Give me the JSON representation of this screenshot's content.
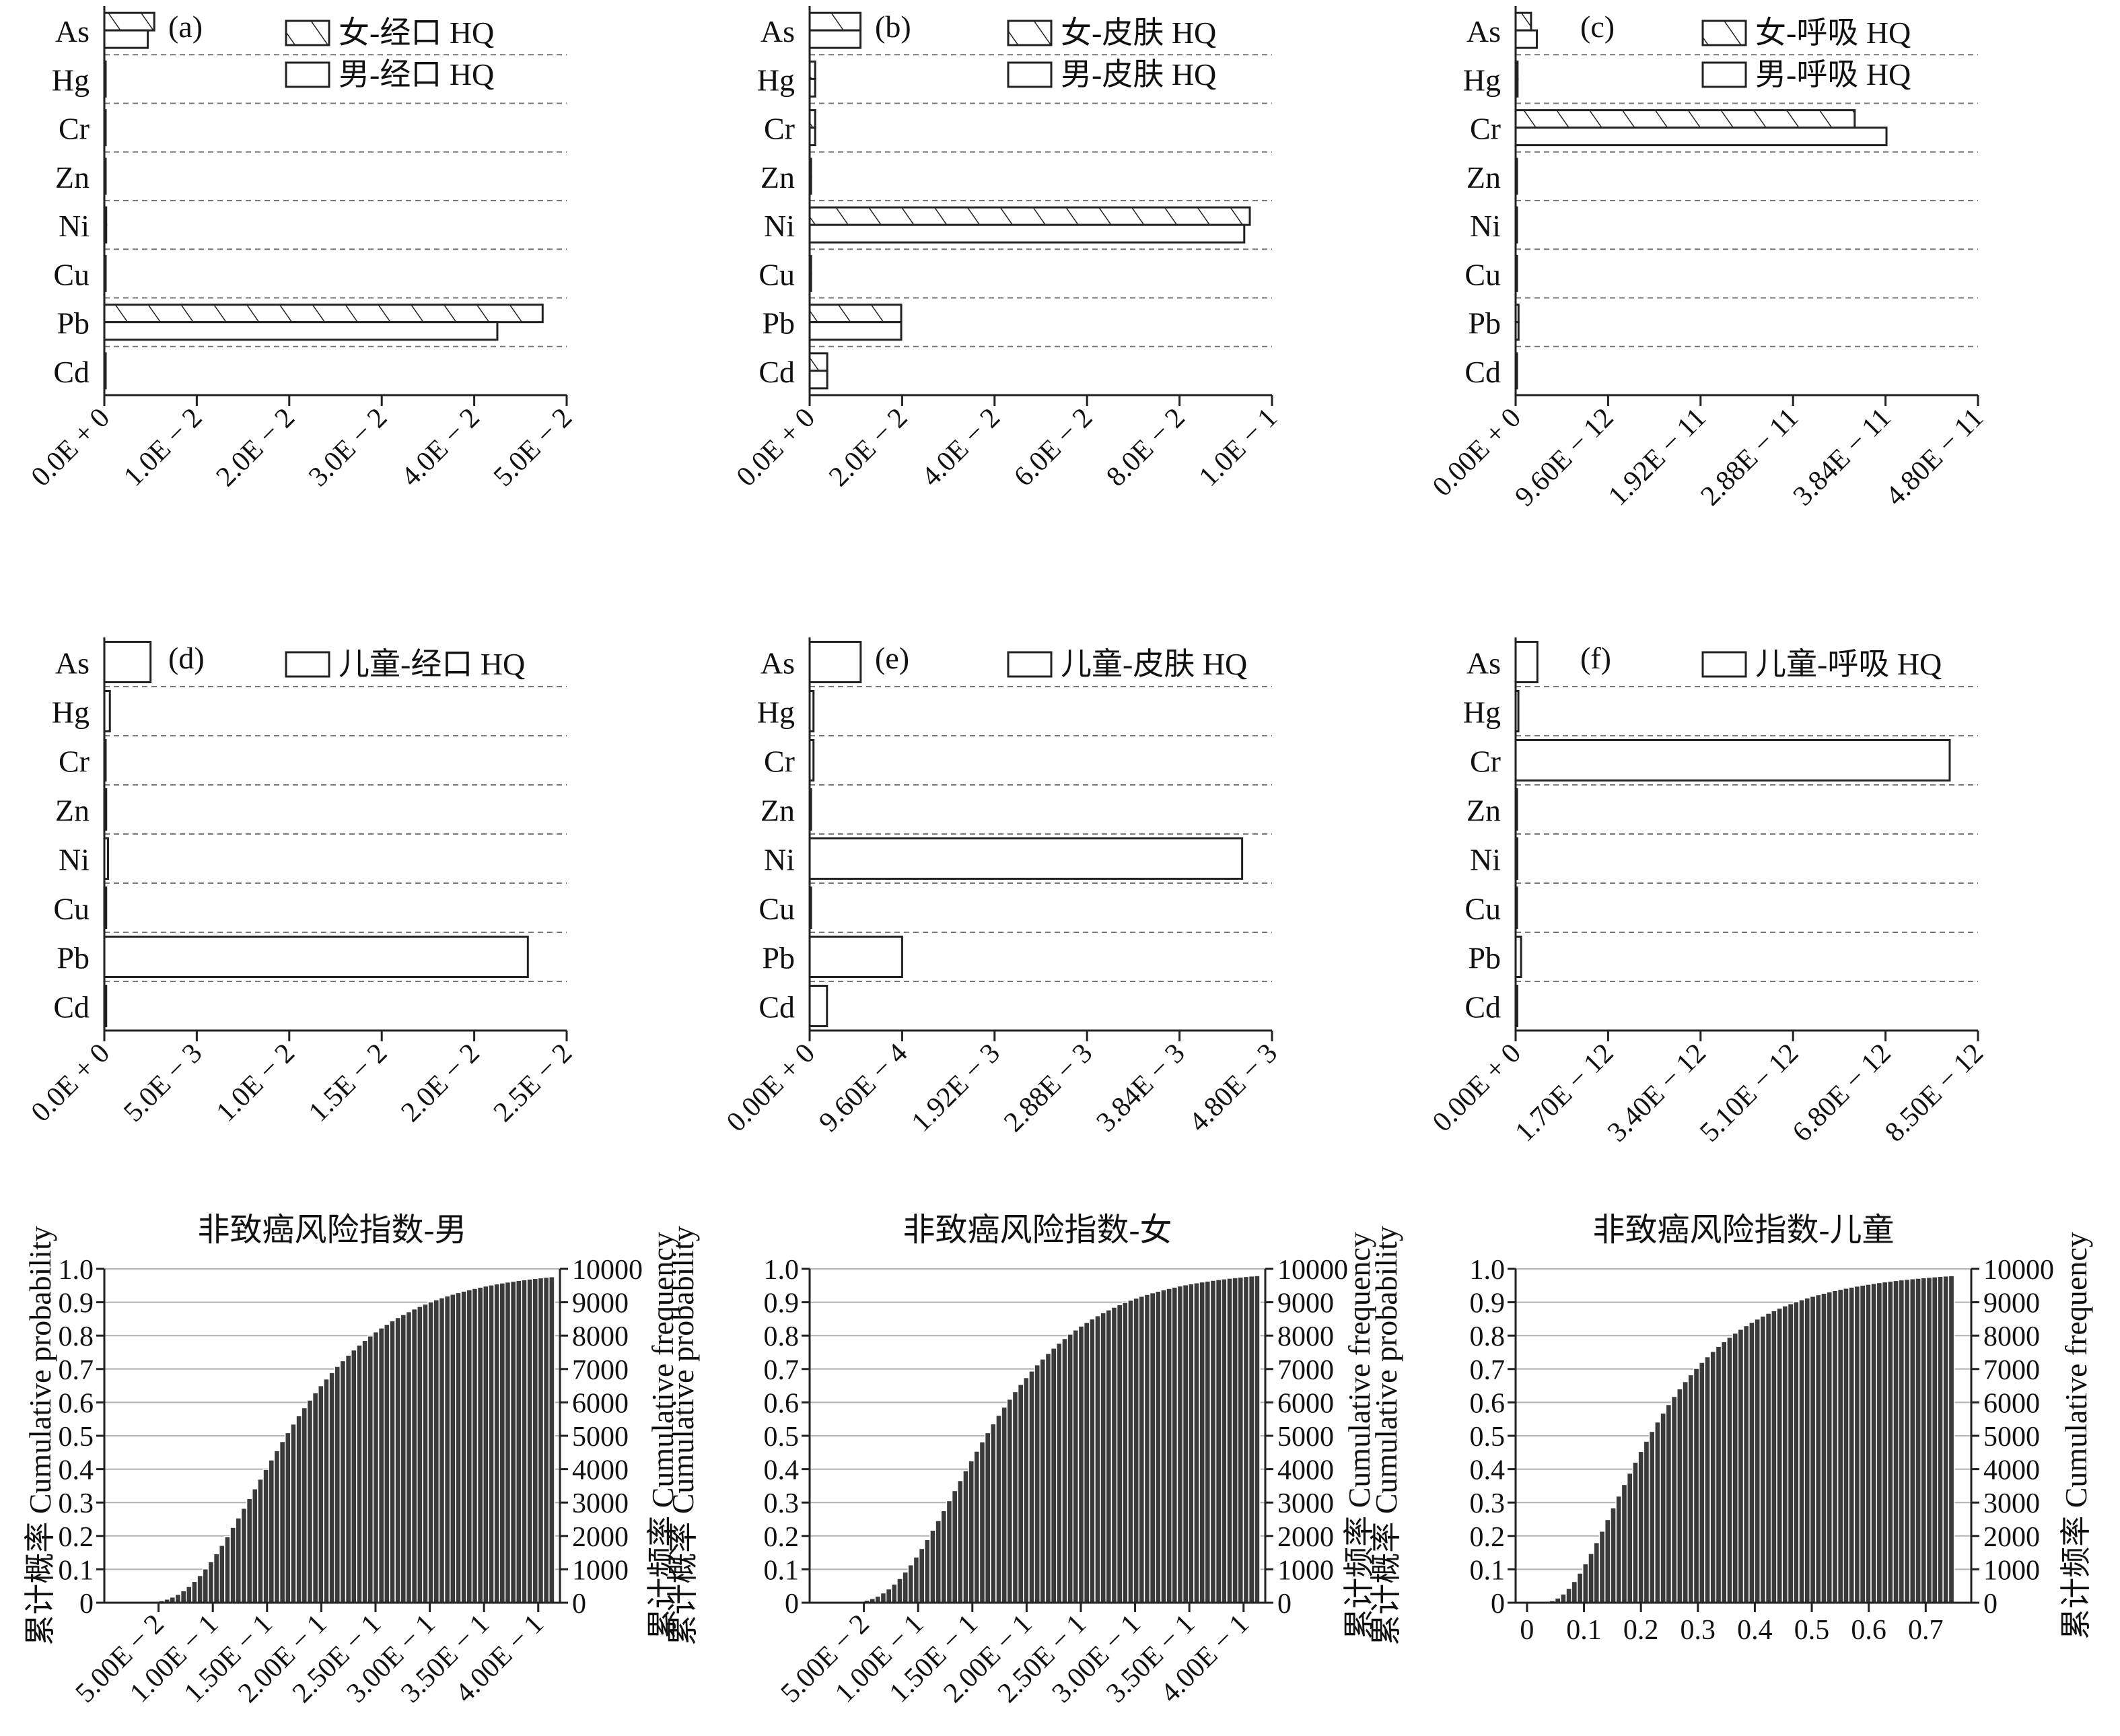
{
  "chart_data": [
    {
      "id": "a",
      "type": "bar",
      "orientation": "horizontal",
      "panel_label": "(a)",
      "categories": [
        "As",
        "Hg",
        "Cr",
        "Zn",
        "Ni",
        "Cu",
        "Pb",
        "Cd"
      ],
      "xlim": [
        0,
        0.05
      ],
      "x_tick_labels": [
        "0.0E + 0",
        "1.0E − 2",
        "2.0E − 2",
        "3.0E − 2",
        "4.0E − 2",
        "5.0E − 2"
      ],
      "series": [
        {
          "name": "女-经口 HQ",
          "pattern": "hatch",
          "values": [
            0.0054,
            0.0001,
            0.0,
            0.0001,
            0.0002,
            0.0001,
            0.0474,
            0.0001
          ]
        },
        {
          "name": "男-经口 HQ",
          "pattern": "open",
          "values": [
            0.0047,
            0.0001,
            0.0,
            0.0001,
            0.0002,
            0.0001,
            0.0425,
            0.0001
          ]
        }
      ]
    },
    {
      "id": "b",
      "type": "bar",
      "orientation": "horizontal",
      "panel_label": "(b)",
      "categories": [
        "As",
        "Hg",
        "Cr",
        "Zn",
        "Ni",
        "Cu",
        "Pb",
        "Cd"
      ],
      "xlim": [
        0,
        0.1
      ],
      "x_tick_labels": [
        "0.0E + 0",
        "2.0E − 2",
        "4.0E − 2",
        "6.0E − 2",
        "8.0E − 2",
        "1.0E − 1"
      ],
      "series": [
        {
          "name": "女-皮肤 HQ",
          "pattern": "hatch",
          "values": [
            0.011,
            0.0012,
            0.0012,
            0.0003,
            0.0952,
            0.0003,
            0.0198,
            0.0038
          ]
        },
        {
          "name": "男-皮肤 HQ",
          "pattern": "open",
          "values": [
            0.011,
            0.0012,
            0.0012,
            0.0003,
            0.094,
            0.0003,
            0.0198,
            0.0038
          ]
        }
      ]
    },
    {
      "id": "c",
      "type": "bar",
      "orientation": "horizontal",
      "panel_label": "(c)",
      "categories": [
        "As",
        "Hg",
        "Cr",
        "Zn",
        "Ni",
        "Cu",
        "Pb",
        "Cd"
      ],
      "xlim": [
        0,
        4.8e-11
      ],
      "x_tick_labels": [
        "0.00E + 0",
        "9.60E − 12",
        "1.92E − 11",
        "2.88E − 11",
        "3.84E − 11",
        "4.80E − 11"
      ],
      "series": [
        {
          "name": "女-呼吸 HQ",
          "pattern": "hatch",
          "values": [
            1.6e-12,
            2e-13,
            3.52e-11,
            1e-13,
            1e-13,
            5e-14,
            3e-13,
            1e-13
          ]
        },
        {
          "name": "男-呼吸 HQ",
          "pattern": "open",
          "values": [
            2.2e-12,
            2e-13,
            3.85e-11,
            1e-13,
            1e-13,
            5e-14,
            3e-13,
            1e-13
          ]
        }
      ]
    },
    {
      "id": "d",
      "type": "bar",
      "orientation": "horizontal",
      "panel_label": "(d)",
      "categories": [
        "As",
        "Hg",
        "Cr",
        "Zn",
        "Ni",
        "Cu",
        "Pb",
        "Cd"
      ],
      "xlim": [
        0,
        0.025
      ],
      "x_tick_labels": [
        "0.0E + 0",
        "5.0E − 3",
        "1.0E − 2",
        "1.5E − 2",
        "2.0E − 2",
        "2.5E − 2"
      ],
      "series": [
        {
          "name": "儿童-经口 HQ",
          "pattern": "open",
          "values": [
            0.0025,
            0.0003,
            0.0,
            0.0001,
            0.0002,
            0.0001,
            0.0229,
            0.0001
          ]
        }
      ]
    },
    {
      "id": "e",
      "type": "bar",
      "orientation": "horizontal",
      "panel_label": "(e)",
      "categories": [
        "As",
        "Hg",
        "Cr",
        "Zn",
        "Ni",
        "Cu",
        "Pb",
        "Cd"
      ],
      "xlim": [
        0,
        0.0048
      ],
      "x_tick_labels": [
        "0.00E + 0",
        "9.60E − 4",
        "1.92E − 3",
        "2.88E − 3",
        "3.84E − 3",
        "4.80E − 3"
      ],
      "series": [
        {
          "name": "儿童-皮肤 HQ",
          "pattern": "open",
          "values": [
            0.00053,
            4e-05,
            4e-05,
            1e-05,
            0.00449,
            1e-05,
            0.00096,
            0.00018
          ]
        }
      ]
    },
    {
      "id": "f",
      "type": "bar",
      "orientation": "horizontal",
      "panel_label": "(f)",
      "categories": [
        "As",
        "Hg",
        "Cr",
        "Zn",
        "Ni",
        "Cu",
        "Pb",
        "Cd"
      ],
      "xlim": [
        0,
        8.5e-12
      ],
      "x_tick_labels": [
        "0.00E + 0",
        "1.70E − 12",
        "3.40E − 12",
        "5.10E − 12",
        "6.80E − 12",
        "8.50E − 12"
      ],
      "series": [
        {
          "name": "儿童-呼吸 HQ",
          "pattern": "open",
          "values": [
            4e-13,
            5e-14,
            7.98e-12,
            2e-14,
            3e-14,
            2e-14,
            1e-13,
            3e-14
          ]
        }
      ]
    },
    {
      "id": "g",
      "type": "bar",
      "subtype": "cumulative",
      "title": "非致癌风险指数-男",
      "ylabel_left": "累计概率 Cumulative probability",
      "ylabel_right": "累计频率 Cumulative frequency",
      "xlim": [
        0.0,
        0.42
      ],
      "x_tick_values": [
        0.05,
        0.1,
        0.15,
        0.2,
        0.25,
        0.3,
        0.35,
        0.4
      ],
      "x_tick_labels": [
        "5.00E − 2",
        "1.00E − 1",
        "1.50E − 1",
        "2.00E − 1",
        "2.50E − 1",
        "3.00E − 1",
        "3.50E − 1",
        "4.00E − 1"
      ],
      "ylim_left": [
        0,
        1.0
      ],
      "ylim_right": [
        0,
        10000
      ],
      "y_left_tick_labels": [
        "0",
        "0.1",
        "0.2",
        "0.3",
        "0.4",
        "0.5",
        "0.6",
        "0.7",
        "0.8",
        "0.9",
        "1.0"
      ],
      "y_right_tick_labels": [
        "0",
        "1000",
        "2000",
        "3000",
        "4000",
        "5000",
        "6000",
        "7000",
        "8000",
        "9000",
        "10000"
      ],
      "grid": true,
      "x_range": [
        0.035,
        0.415
      ],
      "cdf": {
        "median": 0.17,
        "sigma": 0.45,
        "bins": 75
      }
    },
    {
      "id": "h",
      "type": "bar",
      "subtype": "cumulative",
      "title": "非致癌风险指数-女",
      "ylabel_left": "累计概率 Cumulative probability",
      "ylabel_right": "累计频率 Cumulative frequency",
      "xlim": [
        0.0,
        0.42
      ],
      "x_tick_values": [
        0.05,
        0.1,
        0.15,
        0.2,
        0.25,
        0.3,
        0.35,
        0.4
      ],
      "x_tick_labels": [
        "5.00E − 2",
        "1.00E − 1",
        "1.50E − 1",
        "2.00E − 1",
        "2.50E − 1",
        "3.00E − 1",
        "3.50E − 1",
        "4.00E − 1"
      ],
      "ylim_left": [
        0,
        1.0
      ],
      "ylim_right": [
        0,
        10000
      ],
      "y_left_tick_labels": [
        "0",
        "0.1",
        "0.2",
        "0.3",
        "0.4",
        "0.5",
        "0.6",
        "0.7",
        "0.8",
        "0.9",
        "1.0"
      ],
      "y_right_tick_labels": [
        "0",
        "1000",
        "2000",
        "3000",
        "4000",
        "5000",
        "6000",
        "7000",
        "8000",
        "9000",
        "10000"
      ],
      "grid": true,
      "x_range": [
        0.035,
        0.415
      ],
      "cdf": {
        "median": 0.165,
        "sigma": 0.45,
        "bins": 75
      }
    },
    {
      "id": "i",
      "type": "bar",
      "subtype": "cumulative",
      "title": "非致癌风险指数-儿童",
      "ylabel_left": "累计概率 Cumulative probability",
      "ylabel_right": "累计频率 Cumulative frequency",
      "xlim": [
        -0.02,
        0.78
      ],
      "x_tick_values": [
        0,
        0.1,
        0.2,
        0.3,
        0.4,
        0.5,
        0.6,
        0.7
      ],
      "x_tick_labels": [
        "0",
        "0.1",
        "0.2",
        "0.3",
        "0.4",
        "0.5",
        "0.6",
        "0.7"
      ],
      "ylim_left": [
        0,
        1.0
      ],
      "ylim_right": [
        0,
        10000
      ],
      "y_left_tick_labels": [
        "0",
        "0.1",
        "0.2",
        "0.3",
        "0.4",
        "0.5",
        "0.6",
        "0.7",
        "0.8",
        "0.9",
        "1.0"
      ],
      "y_right_tick_labels": [
        "0",
        "1000",
        "2000",
        "3000",
        "4000",
        "5000",
        "6000",
        "7000",
        "8000",
        "9000",
        "10000"
      ],
      "grid": true,
      "x_range": [
        0.02,
        0.75
      ],
      "cdf": {
        "median": 0.22,
        "sigma": 0.6,
        "bins": 75
      }
    }
  ]
}
